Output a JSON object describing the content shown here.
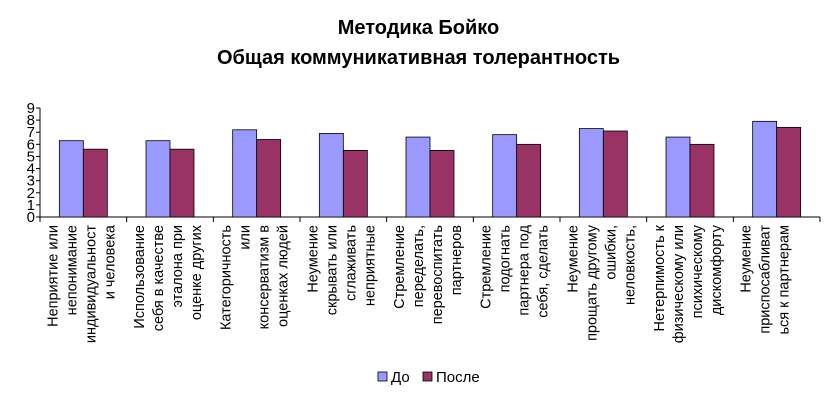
{
  "chart_data": {
    "type": "bar",
    "title": "Методика Бойко",
    "subtitle": "Общая коммуникативная толерантность",
    "xlabel": "",
    "ylabel": "",
    "ylim": [
      0,
      9
    ],
    "yticks": [
      0,
      1,
      2,
      3,
      4,
      5,
      6,
      7,
      8,
      9
    ],
    "grid": false,
    "legend_position": "bottom",
    "categories": [
      [
        "Неприятие или",
        "непонимание",
        "индивидуальност",
        "и человека"
      ],
      [
        "Использование",
        "себя в качестве",
        "эталона при",
        "оценке других"
      ],
      [
        "Категоричность",
        "или",
        "консерватизм в",
        "оценках людей"
      ],
      [
        "Неумение",
        "скрывать или",
        "сглаживать",
        "неприятные"
      ],
      [
        "Стремление",
        "переделать,",
        "перевоспитать",
        "партнеров"
      ],
      [
        "Стремление",
        "подогнать",
        "партнера под",
        "себя, сделать"
      ],
      [
        "Неумение",
        "прощать другому",
        "ошибки,",
        "неловкость,"
      ],
      [
        "Нетерпимость к",
        "физическому или",
        "психическому",
        "дискомфорту"
      ],
      [
        "Неумение",
        "приспосабливат",
        "ься к партнерам"
      ]
    ],
    "series": [
      {
        "name": "До",
        "color": "#9999ff",
        "values": [
          6.3,
          6.3,
          7.2,
          6.9,
          6.6,
          6.8,
          7.3,
          6.6,
          7.9
        ]
      },
      {
        "name": "После",
        "color": "#993366",
        "values": [
          5.6,
          5.6,
          6.4,
          5.5,
          5.5,
          6.0,
          7.1,
          6.0,
          7.4
        ]
      }
    ]
  }
}
